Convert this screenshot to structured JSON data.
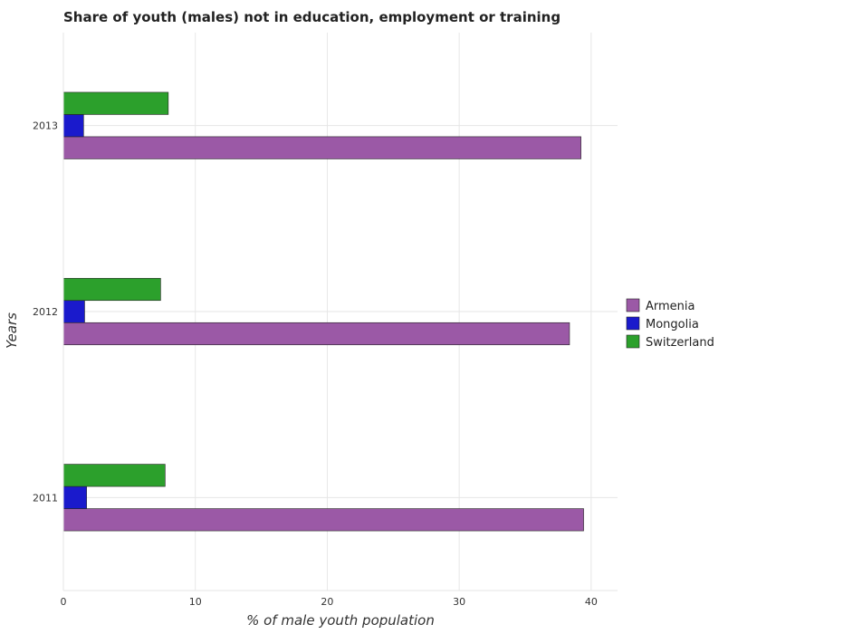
{
  "chart_data": {
    "type": "bar",
    "orientation": "horizontal",
    "title": "Share of youth (males) not in education, employment or training",
    "xlabel": "% of male youth population",
    "ylabel": "Years",
    "categories": [
      "2011",
      "2012",
      "2013"
    ],
    "series": [
      {
        "name": "Armenia",
        "color": "#9b59a6",
        "values": [
          39.43,
          38.36,
          39.23
        ]
      },
      {
        "name": "Mongolia",
        "color": "#1a1acc",
        "values": [
          1.76,
          1.61,
          1.53
        ]
      },
      {
        "name": "Switzerland",
        "color": "#2ca02c",
        "values": [
          7.71,
          7.37,
          7.95
        ]
      }
    ],
    "xlim": [
      0,
      42
    ],
    "xticks": [
      0,
      10,
      20,
      30,
      40
    ],
    "grid": true,
    "legend_position": "right"
  }
}
